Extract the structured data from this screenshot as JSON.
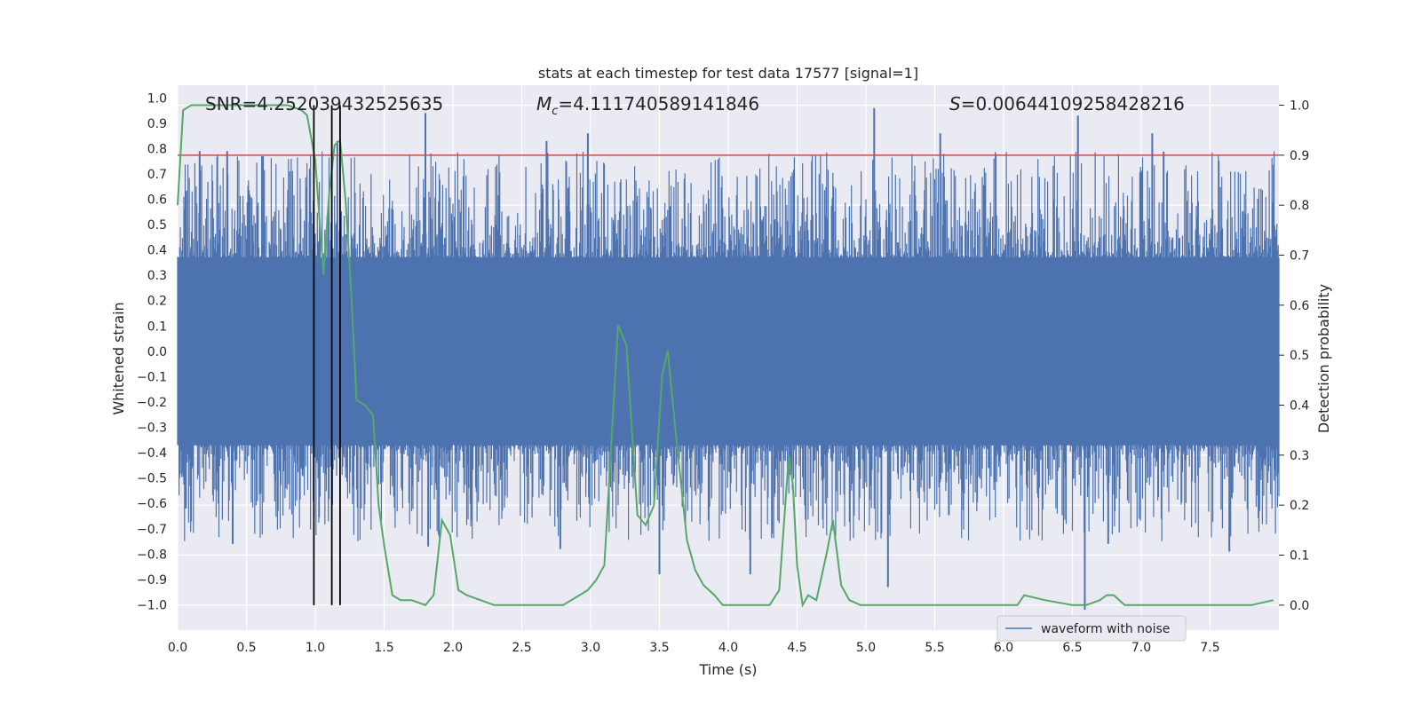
{
  "chart_data": {
    "type": "line",
    "title": "stats at each timestep for test data 17577 [signal=1]",
    "xlabel": "Time (s)",
    "ylabel_left": "Whitened strain",
    "ylabel_right": "Detection probability",
    "xlim": [
      0.0,
      8.0
    ],
    "ylim_left": [
      -1.1,
      1.05
    ],
    "ylim_right": [
      -0.05,
      1.04
    ],
    "x_ticks": [
      0.0,
      0.5,
      1.0,
      1.5,
      2.0,
      2.5,
      3.0,
      3.5,
      4.0,
      4.5,
      5.0,
      5.5,
      6.0,
      6.5,
      7.0,
      7.5
    ],
    "x_tick_labels": [
      "0.0",
      "0.5",
      "1.0",
      "1.5",
      "2.0",
      "2.5",
      "3.0",
      "3.5",
      "4.0",
      "4.5",
      "5.0",
      "5.5",
      "6.0",
      "6.5",
      "7.0",
      "7.5"
    ],
    "y_left_ticks": [
      1.0,
      0.9,
      0.8,
      0.7,
      0.6,
      0.5,
      0.4,
      0.3,
      0.2,
      0.1,
      0.0,
      -0.1,
      -0.2,
      -0.3,
      -0.4,
      -0.5,
      -0.6,
      -0.7,
      -0.8,
      -0.9,
      -1.0
    ],
    "y_left_tick_labels": [
      "1.0",
      "0.9",
      "0.8",
      "0.7",
      "0.6",
      "0.5",
      "0.4",
      "0.3",
      "0.2",
      "0.1",
      "0.0",
      "−0.1",
      "−0.2",
      "−0.3",
      "−0.4",
      "−0.5",
      "−0.6",
      "−0.7",
      "−0.8",
      "−0.9",
      "−1.0"
    ],
    "y_right_ticks": [
      1.0,
      0.9,
      0.8,
      0.7,
      0.6,
      0.5,
      0.4,
      0.3,
      0.2,
      0.1,
      0.0
    ],
    "y_right_tick_labels": [
      "1.0",
      "0.9",
      "0.8",
      "0.7",
      "0.6",
      "0.5",
      "0.4",
      "0.3",
      "0.2",
      "0.1",
      "0.0"
    ],
    "annotations": {
      "snr": "SNR=4.252039432525635",
      "mc_prefix": "M",
      "mc_sub": "c",
      "mc_value": "=4.111740589141846",
      "s_prefix": "S",
      "s_value": "=0.00644109258428216"
    },
    "legend": {
      "label": "waveform with noise",
      "location": "lower-right"
    },
    "threshold": {
      "value": 0.9,
      "axis": "right",
      "color": "#c44e52"
    },
    "vlines": [
      0.99,
      1.12,
      1.18
    ],
    "colors": {
      "waveform": "#4c72b0",
      "probability": "#55a868",
      "vline": "#000000",
      "background": "#eaeaf2",
      "grid": "#ffffff"
    },
    "waveform": {
      "name": "waveform with noise",
      "envelope_upper": 0.37,
      "envelope_lower": -0.37,
      "peaks": [
        {
          "x": 0.16,
          "y": 0.79
        },
        {
          "x": 0.36,
          "y": 0.79
        },
        {
          "x": 0.62,
          "y": 0.77
        },
        {
          "x": 0.96,
          "y": 0.72
        },
        {
          "x": 1.16,
          "y": 0.83
        },
        {
          "x": 1.8,
          "y": 0.94
        },
        {
          "x": 2.68,
          "y": 0.83
        },
        {
          "x": 2.98,
          "y": 0.86
        },
        {
          "x": 5.06,
          "y": 0.96
        },
        {
          "x": 5.54,
          "y": 0.86
        },
        {
          "x": 6.54,
          "y": 0.93
        },
        {
          "x": 7.08,
          "y": 0.86
        },
        {
          "x": 0.06,
          "y": -0.62
        },
        {
          "x": 0.4,
          "y": -0.76
        },
        {
          "x": 1.82,
          "y": -0.77
        },
        {
          "x": 2.78,
          "y": -0.78
        },
        {
          "x": 3.5,
          "y": -0.88
        },
        {
          "x": 4.16,
          "y": -0.88
        },
        {
          "x": 5.16,
          "y": -0.93
        },
        {
          "x": 6.59,
          "y": -1.02
        },
        {
          "x": 7.64,
          "y": -0.79
        },
        {
          "x": 6.76,
          "y": -0.76
        }
      ]
    },
    "probability": {
      "name": "detection probability",
      "x": [
        0.0,
        0.04,
        0.1,
        0.2,
        0.3,
        0.4,
        0.5,
        0.6,
        0.7,
        0.8,
        0.9,
        0.94,
        1.0,
        1.06,
        1.1,
        1.14,
        1.18,
        1.22,
        1.26,
        1.3,
        1.36,
        1.42,
        1.46,
        1.5,
        1.56,
        1.62,
        1.7,
        1.8,
        1.86,
        1.92,
        1.98,
        2.04,
        2.1,
        2.2,
        2.3,
        2.4,
        2.6,
        2.8,
        2.86,
        2.92,
        2.98,
        3.04,
        3.1,
        3.2,
        3.26,
        3.3,
        3.34,
        3.4,
        3.46,
        3.52,
        3.56,
        3.62,
        3.7,
        3.76,
        3.82,
        3.9,
        3.96,
        4.02,
        4.1,
        4.2,
        4.3,
        4.37,
        4.44,
        4.47,
        4.5,
        4.54,
        4.58,
        4.64,
        4.72,
        4.76,
        4.82,
        4.88,
        4.96,
        5.2,
        5.6,
        5.8,
        6.1,
        6.15,
        6.3,
        6.5,
        6.6,
        6.7,
        6.75,
        6.8,
        6.88,
        6.96,
        7.2,
        7.5,
        7.6,
        7.8,
        7.96
      ],
      "y": [
        0.8,
        0.99,
        1.0,
        1.0,
        1.0,
        1.0,
        1.0,
        1.0,
        1.0,
        1.0,
        0.99,
        0.98,
        0.89,
        0.66,
        0.82,
        0.92,
        0.93,
        0.81,
        0.63,
        0.41,
        0.4,
        0.38,
        0.2,
        0.12,
        0.02,
        0.01,
        0.01,
        0.0,
        0.02,
        0.17,
        0.14,
        0.03,
        0.02,
        0.01,
        0.0,
        0.0,
        0.0,
        0.0,
        0.01,
        0.02,
        0.03,
        0.05,
        0.08,
        0.56,
        0.52,
        0.35,
        0.18,
        0.16,
        0.2,
        0.46,
        0.51,
        0.34,
        0.13,
        0.07,
        0.04,
        0.02,
        0.0,
        0.0,
        0.0,
        0.0,
        0.0,
        0.03,
        0.3,
        0.24,
        0.08,
        0.0,
        0.02,
        0.01,
        0.11,
        0.17,
        0.04,
        0.01,
        0.0,
        0.0,
        0.0,
        0.0,
        0.0,
        0.02,
        0.01,
        0.0,
        0.0,
        0.01,
        0.02,
        0.02,
        0.0,
        0.0,
        0.0,
        0.0,
        0.0,
        0.0,
        0.01
      ]
    }
  }
}
